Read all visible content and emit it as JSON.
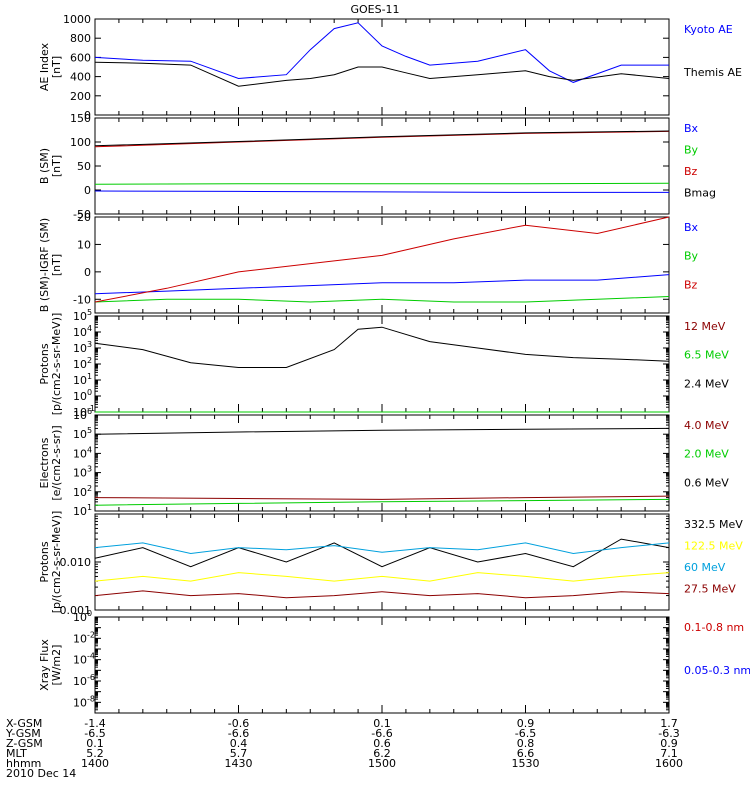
{
  "title": "GOES-11",
  "date_label": "2010 Dec 14",
  "colors": {
    "black": "#000000",
    "blue": "#0000ff",
    "red": "#cc0000",
    "darkred": "#8b0000",
    "green": "#00cc00",
    "yellow": "#ffff00",
    "cyan": "#00a0dd"
  },
  "orbit": {
    "row_labels": [
      "X-GSM",
      "Y-GSM",
      "Z-GSM",
      "MLT",
      "hhmm"
    ],
    "ticks": [
      {
        "values": [
          "-1.4",
          "-6.5",
          "0.1",
          "5.2",
          "1400"
        ]
      },
      {
        "values": [
          "-0.6",
          "-6.6",
          "0.4",
          "5.7",
          "1430"
        ]
      },
      {
        "values": [
          "0.1",
          "-6.6",
          "0.6",
          "6.2",
          "1500"
        ]
      },
      {
        "values": [
          "0.9",
          "-6.5",
          "0.8",
          "6.6",
          "1530"
        ]
      },
      {
        "values": [
          "1.7",
          "-6.3",
          "0.9",
          "7.1",
          "1600"
        ]
      }
    ]
  },
  "chart_data": [
    {
      "type": "line",
      "ylabel": [
        "AE Index",
        "[nT]"
      ],
      "yrange": [
        0,
        1000
      ],
      "yticks": [
        "0",
        "200",
        "400",
        "600",
        "800",
        "1000"
      ],
      "x_minutes": [
        0,
        10,
        20,
        30,
        40,
        45,
        50,
        55,
        60,
        65,
        70,
        80,
        90,
        95,
        100,
        110,
        120
      ],
      "series": [
        {
          "name": "Kyoto AE",
          "color": "#0000ff",
          "values": [
            600,
            570,
            560,
            380,
            420,
            680,
            900,
            960,
            720,
            610,
            520,
            560,
            680,
            460,
            340,
            520,
            520
          ]
        },
        {
          "name": "Themis AE",
          "color": "#000000",
          "values": [
            550,
            540,
            520,
            300,
            360,
            380,
            420,
            500,
            500,
            440,
            380,
            420,
            460,
            400,
            360,
            430,
            380
          ]
        }
      ]
    },
    {
      "type": "line",
      "ylabel": [
        "B (SM)",
        "[nT]"
      ],
      "yrange": [
        -50,
        150
      ],
      "yticks": [
        "-50",
        "0",
        "50",
        "100",
        "150"
      ],
      "x_minutes": [
        0,
        30,
        60,
        90,
        120
      ],
      "series": [
        {
          "name": "Bx",
          "color": "#0000ff",
          "values": [
            -2,
            -3,
            -4,
            -5,
            -5
          ]
        },
        {
          "name": "By",
          "color": "#00cc00",
          "values": [
            12,
            13,
            13,
            13,
            14
          ]
        },
        {
          "name": "Bz",
          "color": "#cc0000",
          "values": [
            90,
            100,
            110,
            118,
            122
          ]
        },
        {
          "name": "Bmag",
          "color": "#000000",
          "values": [
            92,
            101,
            111,
            119,
            123
          ]
        }
      ]
    },
    {
      "type": "line",
      "ylabel": [
        "B (SM)-IGRF (SM)",
        "[nT]"
      ],
      "yrange": [
        -15,
        20
      ],
      "yticks": [
        "-10",
        "0",
        "10",
        "20"
      ],
      "x_minutes": [
        0,
        15,
        30,
        45,
        60,
        75,
        90,
        105,
        120
      ],
      "series": [
        {
          "name": "Bx",
          "color": "#0000ff",
          "values": [
            -8,
            -7,
            -6,
            -5,
            -4,
            -4,
            -3,
            -3,
            -1
          ]
        },
        {
          "name": "By",
          "color": "#00cc00",
          "values": [
            -11,
            -10,
            -10,
            -11,
            -10,
            -11,
            -11,
            -10,
            -9
          ]
        },
        {
          "name": "Bz",
          "color": "#cc0000",
          "values": [
            -11,
            -6,
            0,
            3,
            6,
            12,
            17,
            14,
            20
          ]
        }
      ]
    },
    {
      "type": "line",
      "ylabel": [
        "Protons",
        "[p/(cm2-s-sr-MeV)]"
      ],
      "scale": "log",
      "yrange_exp": [
        -1,
        5
      ],
      "x_minutes": [
        0,
        10,
        20,
        30,
        40,
        50,
        55,
        60,
        70,
        80,
        90,
        100,
        110,
        120
      ],
      "series": [
        {
          "name": "12 MeV",
          "color": "#8b0000",
          "values": [
            0.1,
            0.1,
            0.1,
            0.1,
            0.1,
            0.1,
            0.1,
            0.1,
            0.1,
            0.1,
            0.1,
            0.1,
            0.1,
            0.1
          ]
        },
        {
          "name": "6.5 MeV",
          "color": "#00cc00",
          "values": [
            0.1,
            0.1,
            0.1,
            0.1,
            0.1,
            0.1,
            0.1,
            0.1,
            0.1,
            0.1,
            0.1,
            0.1,
            0.1,
            0.1
          ]
        },
        {
          "name": "2.4 MeV",
          "color": "#000000",
          "values": [
            2000,
            800,
            120,
            60,
            60,
            800,
            15000,
            20000,
            2500,
            1000,
            400,
            250,
            200,
            150
          ]
        }
      ]
    },
    {
      "type": "line",
      "ylabel": [
        "Electrons",
        "[e/(cm2-s-sr)]"
      ],
      "scale": "log",
      "yrange_exp": [
        1,
        6
      ],
      "x_minutes": [
        0,
        30,
        60,
        90,
        120
      ],
      "series": [
        {
          "name": "4.0 MeV",
          "color": "#8b0000",
          "values": [
            50,
            45,
            40,
            50,
            60
          ]
        },
        {
          "name": "2.0 MeV",
          "color": "#00cc00",
          "values": [
            20,
            25,
            30,
            35,
            40
          ]
        },
        {
          "name": "0.6 MeV",
          "color": "#000000",
          "values": [
            100000,
            130000,
            160000,
            180000,
            200000
          ]
        }
      ]
    },
    {
      "type": "line",
      "ylabel": [
        "Protons",
        "[p/(cm2-s-sr-MeV)]"
      ],
      "scale": "log",
      "yrange_exp": [
        -3,
        -1
      ],
      "yticks": [
        "0.001",
        "0.010"
      ],
      "x_minutes": [
        0,
        10,
        20,
        30,
        40,
        50,
        60,
        70,
        80,
        90,
        100,
        110,
        120
      ],
      "series": [
        {
          "name": "332.5 MeV",
          "color": "#000000",
          "values": [
            0.012,
            0.02,
            0.008,
            0.02,
            0.01,
            0.025,
            0.008,
            0.02,
            0.01,
            0.015,
            0.008,
            0.03,
            0.02
          ]
        },
        {
          "name": "122.5 MeV",
          "color": "#ffff00",
          "values": [
            0.004,
            0.005,
            0.004,
            0.006,
            0.005,
            0.004,
            0.005,
            0.004,
            0.006,
            0.005,
            0.004,
            0.005,
            0.006
          ]
        },
        {
          "name": "60 MeV",
          "color": "#00a0dd",
          "values": [
            0.02,
            0.025,
            0.015,
            0.02,
            0.018,
            0.022,
            0.016,
            0.02,
            0.018,
            0.025,
            0.015,
            0.02,
            0.025
          ]
        },
        {
          "name": "27.5 MeV",
          "color": "#8b0000",
          "values": [
            0.002,
            0.0025,
            0.002,
            0.0022,
            0.0018,
            0.002,
            0.0024,
            0.002,
            0.0022,
            0.0018,
            0.002,
            0.0024,
            0.0022
          ]
        }
      ]
    },
    {
      "type": "line",
      "ylabel": [
        "Xray Flux",
        "[W/m2]"
      ],
      "scale": "log",
      "yrange_exp": [
        -9,
        0
      ],
      "yticks_exp": [
        -8,
        -6,
        -4,
        -2,
        0
      ],
      "x_minutes": [],
      "series": [
        {
          "name": "0.1-0.8 nm",
          "color": "#cc0000",
          "values": []
        },
        {
          "name": "0.05-0.3 nm",
          "color": "#0000ff",
          "values": []
        }
      ]
    }
  ]
}
